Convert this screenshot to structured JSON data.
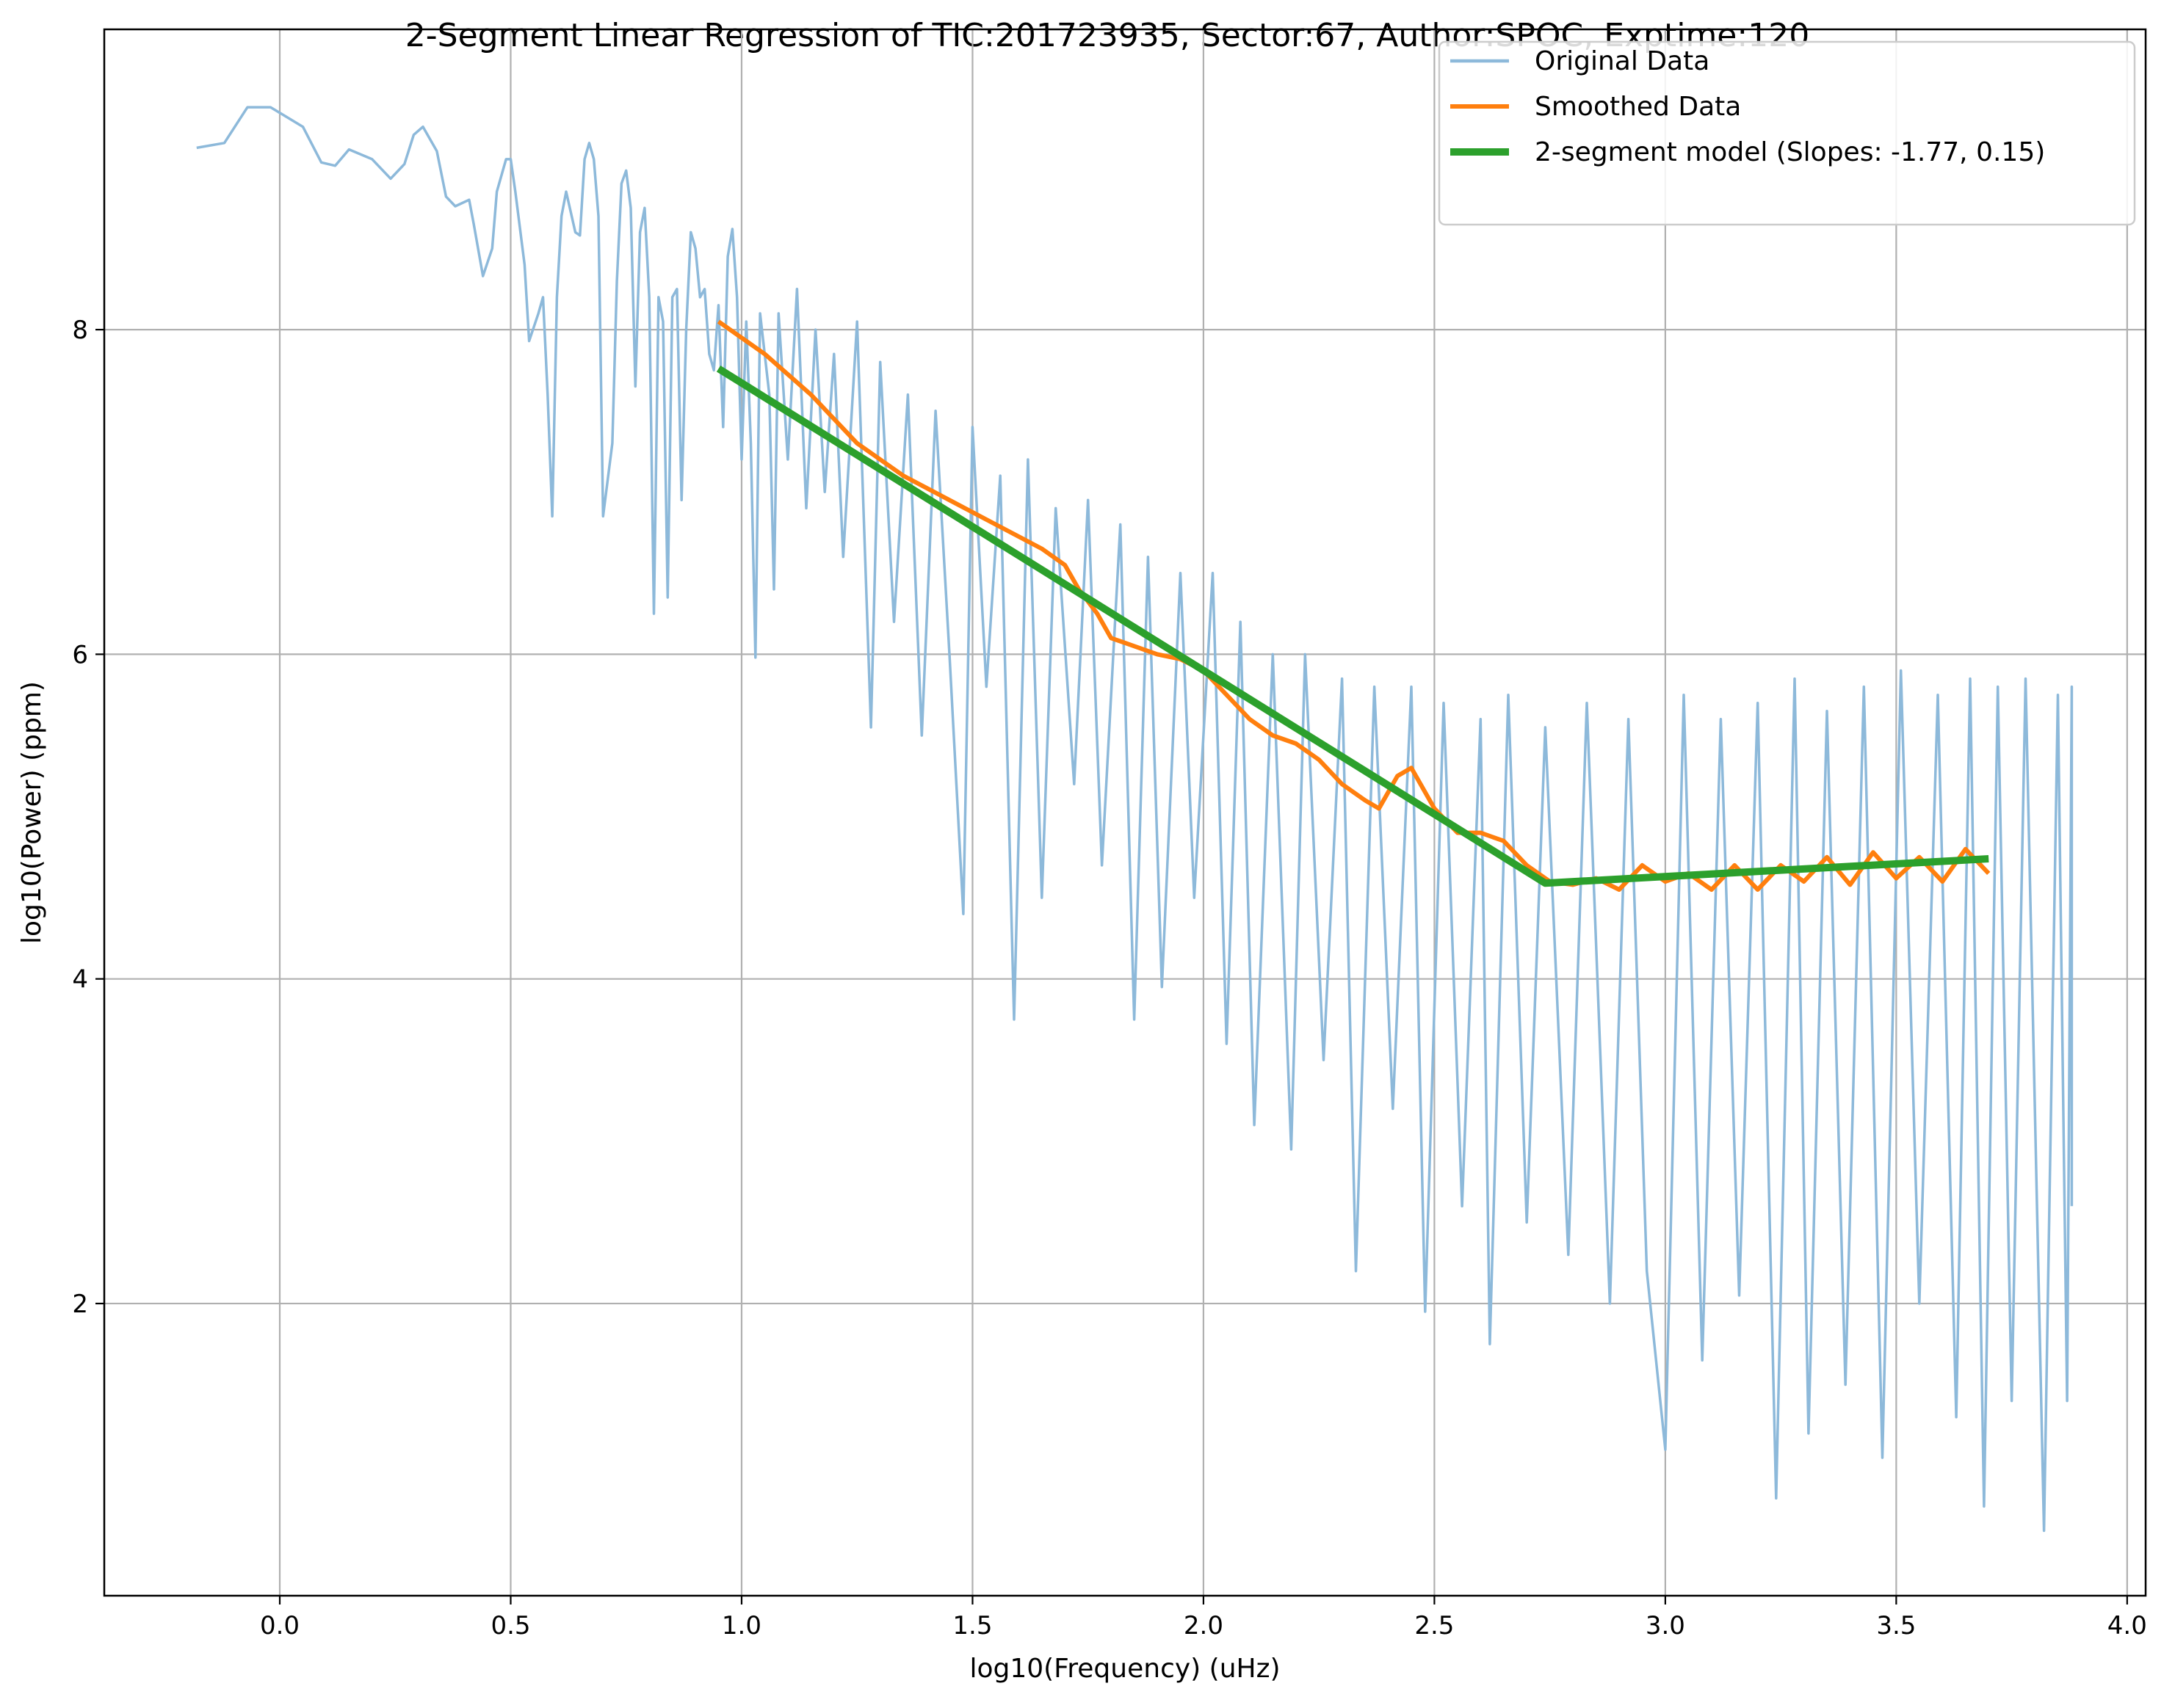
{
  "chart_data": {
    "type": "line",
    "title": "2-Segment Linear Regression of TIC:201723935, Sector:67, Author:SPOC, Exptime:120",
    "xlabel": "log10(Frequency) (uHz)",
    "ylabel": "log10(Power) (ppm)",
    "xlim": [
      -0.38,
      4.04
    ],
    "ylim": [
      0.2,
      9.85
    ],
    "x_ticks": [
      0.0,
      0.5,
      1.0,
      1.5,
      2.0,
      2.5,
      3.0,
      3.5,
      4.0
    ],
    "x_tick_labels": [
      "0.0",
      "0.5",
      "1.0",
      "1.5",
      "2.0",
      "2.5",
      "3.0",
      "3.5",
      "4.0"
    ],
    "y_ticks": [
      2,
      4,
      6,
      8
    ],
    "y_tick_labels": [
      "2",
      "4",
      "6",
      "8"
    ],
    "grid": true,
    "legend_position": "top-right",
    "series": [
      {
        "name": "Original Data",
        "color": "#8db9da",
        "style": "noisy-line",
        "points": [
          [
            -0.18,
            9.12
          ],
          [
            -0.12,
            9.15
          ],
          [
            -0.07,
            9.37
          ],
          [
            -0.02,
            9.37
          ],
          [
            0.05,
            9.25
          ],
          [
            0.09,
            9.03
          ],
          [
            0.12,
            9.01
          ],
          [
            0.15,
            9.11
          ],
          [
            0.2,
            9.05
          ],
          [
            0.24,
            8.93
          ],
          [
            0.27,
            9.02
          ],
          [
            0.29,
            9.2
          ],
          [
            0.31,
            9.25
          ],
          [
            0.34,
            9.1
          ],
          [
            0.36,
            8.82
          ],
          [
            0.38,
            8.76
          ],
          [
            0.41,
            8.8
          ],
          [
            0.42,
            8.65
          ],
          [
            0.44,
            8.33
          ],
          [
            0.46,
            8.5
          ],
          [
            0.47,
            8.85
          ],
          [
            0.49,
            9.05
          ],
          [
            0.5,
            9.05
          ],
          [
            0.51,
            8.85
          ],
          [
            0.53,
            8.4
          ],
          [
            0.54,
            7.93
          ],
          [
            0.56,
            8.1
          ],
          [
            0.57,
            8.2
          ],
          [
            0.58,
            7.6
          ],
          [
            0.59,
            6.85
          ],
          [
            0.6,
            8.2
          ],
          [
            0.61,
            8.7
          ],
          [
            0.62,
            8.85
          ],
          [
            0.64,
            8.6
          ],
          [
            0.65,
            8.58
          ],
          [
            0.66,
            9.05
          ],
          [
            0.67,
            9.15
          ],
          [
            0.68,
            9.05
          ],
          [
            0.69,
            8.7
          ],
          [
            0.7,
            6.85
          ],
          [
            0.72,
            7.3
          ],
          [
            0.73,
            8.3
          ],
          [
            0.74,
            8.9
          ],
          [
            0.75,
            8.98
          ],
          [
            0.76,
            8.75
          ],
          [
            0.77,
            7.65
          ],
          [
            0.78,
            8.6
          ],
          [
            0.79,
            8.75
          ],
          [
            0.8,
            8.2
          ],
          [
            0.81,
            6.25
          ],
          [
            0.82,
            8.2
          ],
          [
            0.83,
            8.05
          ],
          [
            0.84,
            6.35
          ],
          [
            0.85,
            8.2
          ],
          [
            0.86,
            8.25
          ],
          [
            0.87,
            6.95
          ],
          [
            0.88,
            8.0
          ],
          [
            0.89,
            8.6
          ],
          [
            0.9,
            8.5
          ],
          [
            0.91,
            8.2
          ],
          [
            0.92,
            8.25
          ],
          [
            0.93,
            7.85
          ],
          [
            0.94,
            7.75
          ],
          [
            0.95,
            8.15
          ],
          [
            0.96,
            7.4
          ],
          [
            0.97,
            8.45
          ],
          [
            0.98,
            8.62
          ],
          [
            0.99,
            8.2
          ],
          [
            1.0,
            7.2
          ],
          [
            1.01,
            8.05
          ],
          [
            1.02,
            7.3
          ],
          [
            1.03,
            5.98
          ],
          [
            1.04,
            8.1
          ],
          [
            1.06,
            7.6
          ],
          [
            1.07,
            6.4
          ],
          [
            1.08,
            8.1
          ],
          [
            1.1,
            7.2
          ],
          [
            1.12,
            8.25
          ],
          [
            1.14,
            6.9
          ],
          [
            1.16,
            8.0
          ],
          [
            1.18,
            7.0
          ],
          [
            1.2,
            7.85
          ],
          [
            1.22,
            6.6
          ],
          [
            1.25,
            8.05
          ],
          [
            1.28,
            5.55
          ],
          [
            1.3,
            7.8
          ],
          [
            1.33,
            6.2
          ],
          [
            1.36,
            7.6
          ],
          [
            1.39,
            5.5
          ],
          [
            1.42,
            7.5
          ],
          [
            1.45,
            6.0
          ],
          [
            1.48,
            4.4
          ],
          [
            1.5,
            7.4
          ],
          [
            1.53,
            5.8
          ],
          [
            1.56,
            7.1
          ],
          [
            1.59,
            3.75
          ],
          [
            1.62,
            7.2
          ],
          [
            1.65,
            4.5
          ],
          [
            1.68,
            6.9
          ],
          [
            1.72,
            5.2
          ],
          [
            1.75,
            6.95
          ],
          [
            1.78,
            4.7
          ],
          [
            1.82,
            6.8
          ],
          [
            1.85,
            3.75
          ],
          [
            1.88,
            6.6
          ],
          [
            1.91,
            3.95
          ],
          [
            1.95,
            6.5
          ],
          [
            1.98,
            4.5
          ],
          [
            2.02,
            6.5
          ],
          [
            2.05,
            3.6
          ],
          [
            2.08,
            6.2
          ],
          [
            2.11,
            3.1
          ],
          [
            2.15,
            6.0
          ],
          [
            2.19,
            2.95
          ],
          [
            2.22,
            6.0
          ],
          [
            2.26,
            3.5
          ],
          [
            2.3,
            5.85
          ],
          [
            2.33,
            2.2
          ],
          [
            2.37,
            5.8
          ],
          [
            2.41,
            3.2
          ],
          [
            2.45,
            5.8
          ],
          [
            2.48,
            1.95
          ],
          [
            2.52,
            5.7
          ],
          [
            2.56,
            2.6
          ],
          [
            2.6,
            5.6
          ],
          [
            2.62,
            1.75
          ],
          [
            2.66,
            5.75
          ],
          [
            2.7,
            2.5
          ],
          [
            2.74,
            5.55
          ],
          [
            2.79,
            2.3
          ],
          [
            2.83,
            5.7
          ],
          [
            2.88,
            2.0
          ],
          [
            2.92,
            5.6
          ],
          [
            2.96,
            2.2
          ],
          [
            3.0,
            1.1
          ],
          [
            3.04,
            5.75
          ],
          [
            3.08,
            1.65
          ],
          [
            3.12,
            5.6
          ],
          [
            3.16,
            2.05
          ],
          [
            3.2,
            5.7
          ],
          [
            3.24,
            0.8
          ],
          [
            3.28,
            5.85
          ],
          [
            3.31,
            1.2
          ],
          [
            3.35,
            5.65
          ],
          [
            3.39,
            1.5
          ],
          [
            3.43,
            5.8
          ],
          [
            3.47,
            1.05
          ],
          [
            3.51,
            5.9
          ],
          [
            3.55,
            2.0
          ],
          [
            3.59,
            5.75
          ],
          [
            3.63,
            1.3
          ],
          [
            3.66,
            5.85
          ],
          [
            3.69,
            0.75
          ],
          [
            3.72,
            5.8
          ],
          [
            3.75,
            1.4
          ],
          [
            3.78,
            5.85
          ],
          [
            3.82,
            0.6
          ],
          [
            3.85,
            5.75
          ],
          [
            3.87,
            1.4
          ],
          [
            3.88,
            5.8
          ],
          [
            3.88,
            2.6
          ]
        ]
      },
      {
        "name": "Smoothed Data",
        "color": "#ff7f0e",
        "style": "line",
        "points": [
          [
            0.95,
            8.05
          ],
          [
            1.05,
            7.85
          ],
          [
            1.15,
            7.6
          ],
          [
            1.25,
            7.3
          ],
          [
            1.35,
            7.1
          ],
          [
            1.45,
            6.95
          ],
          [
            1.55,
            6.8
          ],
          [
            1.65,
            6.65
          ],
          [
            1.7,
            6.55
          ],
          [
            1.73,
            6.4
          ],
          [
            1.77,
            6.25
          ],
          [
            1.8,
            6.1
          ],
          [
            1.85,
            6.05
          ],
          [
            1.9,
            6.0
          ],
          [
            1.95,
            5.97
          ],
          [
            2.0,
            5.9
          ],
          [
            2.05,
            5.75
          ],
          [
            2.1,
            5.6
          ],
          [
            2.15,
            5.5
          ],
          [
            2.2,
            5.45
          ],
          [
            2.25,
            5.35
          ],
          [
            2.3,
            5.2
          ],
          [
            2.35,
            5.1
          ],
          [
            2.38,
            5.05
          ],
          [
            2.42,
            5.25
          ],
          [
            2.45,
            5.3
          ],
          [
            2.5,
            5.05
          ],
          [
            2.55,
            4.9
          ],
          [
            2.6,
            4.9
          ],
          [
            2.65,
            4.85
          ],
          [
            2.7,
            4.7
          ],
          [
            2.75,
            4.6
          ],
          [
            2.8,
            4.58
          ],
          [
            2.85,
            4.62
          ],
          [
            2.9,
            4.55
          ],
          [
            2.95,
            4.7
          ],
          [
            3.0,
            4.6
          ],
          [
            3.05,
            4.65
          ],
          [
            3.1,
            4.55
          ],
          [
            3.15,
            4.7
          ],
          [
            3.2,
            4.55
          ],
          [
            3.25,
            4.7
          ],
          [
            3.3,
            4.6
          ],
          [
            3.35,
            4.75
          ],
          [
            3.4,
            4.58
          ],
          [
            3.45,
            4.78
          ],
          [
            3.5,
            4.62
          ],
          [
            3.55,
            4.75
          ],
          [
            3.6,
            4.6
          ],
          [
            3.65,
            4.8
          ],
          [
            3.7,
            4.65
          ]
        ]
      },
      {
        "name": "2-segment model (Slopes: -1.77, 0.15)",
        "color": "#2ca02c",
        "style": "line",
        "slopes": [
          -1.77,
          0.15
        ],
        "points": [
          [
            0.95,
            7.76
          ],
          [
            2.74,
            4.59
          ],
          [
            3.7,
            4.74
          ]
        ]
      }
    ]
  }
}
